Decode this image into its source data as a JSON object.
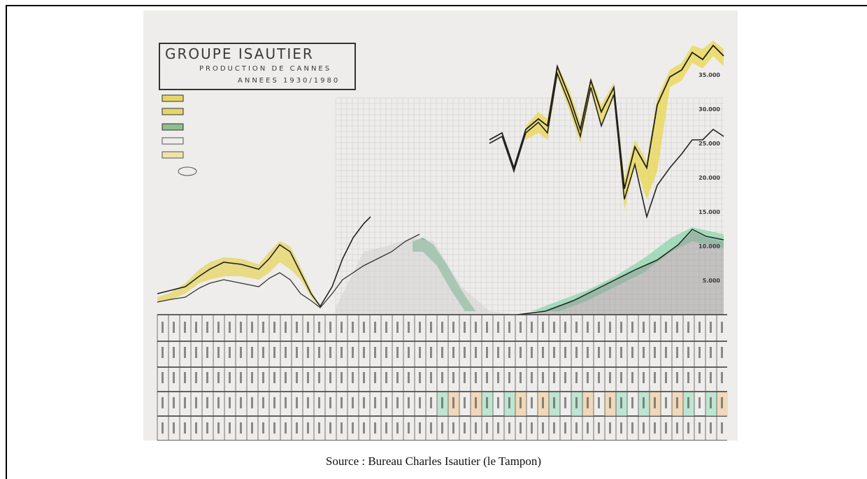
{
  "document": {
    "figure": {
      "title": "GROUPE ISAUTIER",
      "subtitle": "PRODUCTION DE CANNES",
      "period": "ANNEES 1930/1980",
      "axis_labels": [
        "35.000",
        "30.000",
        "25.000",
        "20.000",
        "15.000",
        "10.000",
        "5.000"
      ]
    },
    "caption": "Source : Bureau Charles Isautier (le Tampon)"
  }
}
